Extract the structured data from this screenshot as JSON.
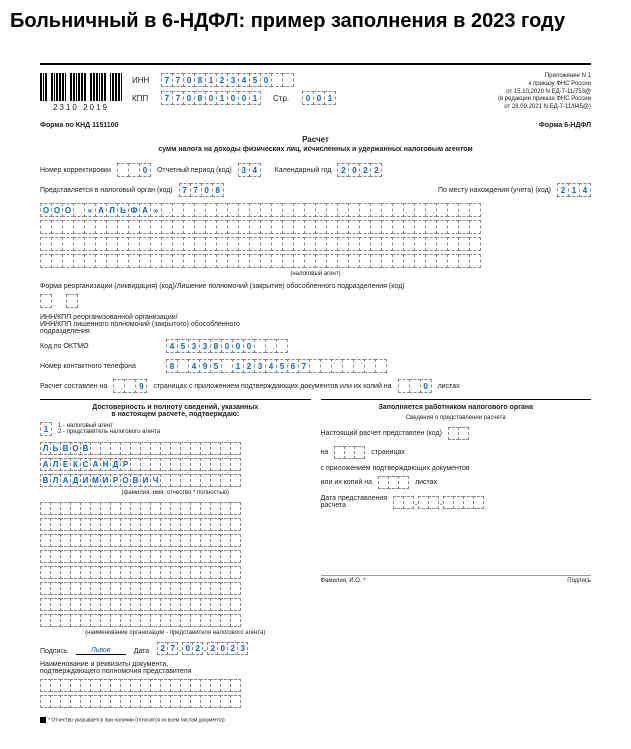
{
  "page_title": "Больничный в 6-НДФЛ: пример заполнения в 2023 году",
  "barcode_num": "2310 2019",
  "inn": {
    "label": "ИНН",
    "v": [
      "7",
      "7",
      "0",
      "8",
      "1",
      "2",
      "3",
      "4",
      "5",
      "0",
      "",
      ""
    ]
  },
  "kpp": {
    "label": "КПП",
    "v": [
      "7",
      "7",
      "0",
      "8",
      "0",
      "1",
      "0",
      "0",
      "1"
    ]
  },
  "page": {
    "label": "Стр.",
    "v": [
      "0",
      "0",
      "1"
    ]
  },
  "appendix": [
    "Приложение N 1",
    "к приказу ФНС России",
    "от 15.10.2020 N ЕД-7-11/753@",
    "(в редакции приказа ФНС России",
    "от 28.09.2021 N ЕД-7-11/845@)"
  ],
  "form_knd": "Форма по КНД 1151100",
  "form_name": "Форма 6-НДФЛ",
  "title": "Расчет",
  "subtitle": "сумм налога на доходы физических лиц, исчисленных и удержанных налоговым агентом",
  "r1": {
    "l1": "Номер корректировки",
    "v1": [
      "",
      "",
      "0"
    ],
    "l2": "Отчетный период (код)",
    "v2": [
      "3",
      "4"
    ],
    "l3": "Календарный год",
    "v3": [
      "2",
      "0",
      "2",
      "2"
    ]
  },
  "r2": {
    "l1": "Представляется в налоговый орган (код)",
    "v1": [
      "7",
      "7",
      "0",
      "8"
    ],
    "l2": "По месту нахождения (учета) (код)",
    "v2": [
      "2",
      "1",
      "4"
    ]
  },
  "org": [
    [
      "О",
      "О",
      "О",
      "",
      "«",
      "А",
      "Л",
      "Ь",
      "Ф",
      "А",
      "»",
      "",
      "",
      "",
      "",
      "",
      "",
      "",
      "",
      "",
      "",
      "",
      "",
      "",
      "",
      "",
      "",
      "",
      "",
      "",
      "",
      "",
      "",
      "",
      "",
      "",
      "",
      "",
      "",
      ""
    ],
    [
      "",
      "",
      "",
      "",
      "",
      "",
      "",
      "",
      "",
      "",
      "",
      "",
      "",
      "",
      "",
      "",
      "",
      "",
      "",
      "",
      "",
      "",
      "",
      "",
      "",
      "",
      "",
      "",
      "",
      "",
      "",
      "",
      "",
      "",
      "",
      "",
      "",
      "",
      "",
      ""
    ],
    [
      "",
      "",
      "",
      "",
      "",
      "",
      "",
      "",
      "",
      "",
      "",
      "",
      "",
      "",
      "",
      "",
      "",
      "",
      "",
      "",
      "",
      "",
      "",
      "",
      "",
      "",
      "",
      "",
      "",
      "",
      "",
      "",
      "",
      "",
      "",
      "",
      "",
      "",
      "",
      ""
    ],
    [
      "",
      "",
      "",
      "",
      "",
      "",
      "",
      "",
      "",
      "",
      "",
      "",
      "",
      "",
      "",
      "",
      "",
      "",
      "",
      "",
      "",
      "",
      "",
      "",
      "",
      "",
      "",
      "",
      "",
      "",
      "",
      "",
      "",
      "",
      "",
      "",
      "",
      "",
      "",
      ""
    ]
  ],
  "org_note": "(налоговый агент)",
  "reorg": "Форма реорганизации (ликвидация) (код)/Лишение полномочий (закрытие) обособленного подразделения (код)",
  "reorg2": "ИНН/КПП реорганизованной организации/\nИНН/КПП лишенного полномочий (закрытого) обособленного\nподразделения",
  "oktmo": {
    "l": "Код по ОКТМО",
    "v": [
      "4",
      "5",
      "3",
      "3",
      "8",
      "0",
      "0",
      "0",
      "",
      "",
      ""
    ]
  },
  "phone": {
    "l": "Номер контактного телефона",
    "v": [
      "8",
      "",
      "4",
      "9",
      "5",
      "",
      "1",
      "2",
      "3",
      "4",
      "5",
      "6",
      "7",
      "",
      "",
      "",
      "",
      "",
      "",
      ""
    ]
  },
  "pages": {
    "l1": "Расчет составлен на",
    "v1": [
      "",
      "",
      "9"
    ],
    "l2": "страницах с приложением подтверждающих документов или их копий на",
    "v2": [
      "",
      "",
      "0"
    ],
    "l3": "листах"
  },
  "left_title": "Достоверность и полноту сведений, указанных\nв настоящем расчете, подтверждаю:",
  "role": {
    "v": [
      "1"
    ],
    "o1": "1 - налоговый агент",
    "o2": "2 - представитель налогового агента"
  },
  "fio": [
    [
      "Л",
      "Ь",
      "В",
      "О",
      "В",
      "",
      "",
      "",
      "",
      "",
      "",
      "",
      "",
      "",
      "",
      "",
      "",
      "",
      "",
      ""
    ],
    [
      "А",
      "Л",
      "Е",
      "К",
      "С",
      "А",
      "Н",
      "Д",
      "Р",
      "",
      "",
      "",
      "",
      "",
      "",
      "",
      "",
      "",
      "",
      ""
    ],
    [
      "В",
      "Л",
      "А",
      "Д",
      "И",
      "М",
      "И",
      "Р",
      "О",
      "В",
      "И",
      "Ч",
      "",
      "",
      "",
      "",
      "",
      "",
      "",
      ""
    ]
  ],
  "fio_note": "(фамилия, имя, отчество * полностью)",
  "rep": [
    [
      "",
      "",
      "",
      "",
      "",
      "",
      "",
      "",
      "",
      "",
      "",
      "",
      "",
      "",
      "",
      "",
      "",
      "",
      "",
      ""
    ],
    [
      "",
      "",
      "",
      "",
      "",
      "",
      "",
      "",
      "",
      "",
      "",
      "",
      "",
      "",
      "",
      "",
      "",
      "",
      "",
      ""
    ],
    [
      "",
      "",
      "",
      "",
      "",
      "",
      "",
      "",
      "",
      "",
      "",
      "",
      "",
      "",
      "",
      "",
      "",
      "",
      "",
      ""
    ],
    [
      "",
      "",
      "",
      "",
      "",
      "",
      "",
      "",
      "",
      "",
      "",
      "",
      "",
      "",
      "",
      "",
      "",
      "",
      "",
      ""
    ],
    [
      "",
      "",
      "",
      "",
      "",
      "",
      "",
      "",
      "",
      "",
      "",
      "",
      "",
      "",
      "",
      "",
      "",
      "",
      "",
      ""
    ],
    [
      "",
      "",
      "",
      "",
      "",
      "",
      "",
      "",
      "",
      "",
      "",
      "",
      "",
      "",
      "",
      "",
      "",
      "",
      "",
      ""
    ],
    [
      "",
      "",
      "",
      "",
      "",
      "",
      "",
      "",
      "",
      "",
      "",
      "",
      "",
      "",
      "",
      "",
      "",
      "",
      "",
      ""
    ],
    [
      "",
      "",
      "",
      "",
      "",
      "",
      "",
      "",
      "",
      "",
      "",
      "",
      "",
      "",
      "",
      "",
      "",
      "",
      "",
      ""
    ]
  ],
  "rep_note": "(наименование организации - представителя налогового агента)",
  "sig": {
    "l": "Подпись",
    "v": "Львов",
    "dl": "Дата",
    "d": [
      "2",
      "7",
      ".",
      "0",
      "2",
      ".",
      "2",
      "0",
      "2",
      "3"
    ]
  },
  "doc": "Наименование и реквизиты документа,\nподтверждающего полномочия представителя",
  "doc_cells": [
    [
      "",
      "",
      "",
      "",
      "",
      "",
      "",
      "",
      "",
      "",
      "",
      "",
      "",
      "",
      "",
      "",
      "",
      "",
      "",
      ""
    ],
    [
      "",
      "",
      "",
      "",
      "",
      "",
      "",
      "",
      "",
      "",
      "",
      "",
      "",
      "",
      "",
      "",
      "",
      "",
      "",
      ""
    ]
  ],
  "right_title": "Заполняется работником налогового органа",
  "right_sub": "Сведения о представлении расчета",
  "rr1": "Настоящий расчет представлен (код)",
  "rr2_a": "на",
  "rr2_b": "страницах",
  "rr3": "с приложением подтверждающих документов",
  "rr4_a": "или их копий на",
  "rr4_b": "листах",
  "rr5": "Дата представления\nрасчета",
  "rfio": "Фамилия, И.О. *",
  "rsig": "Подпись",
  "foot": "* Отчество указывается при наличии (относится ко всем листам документа)"
}
